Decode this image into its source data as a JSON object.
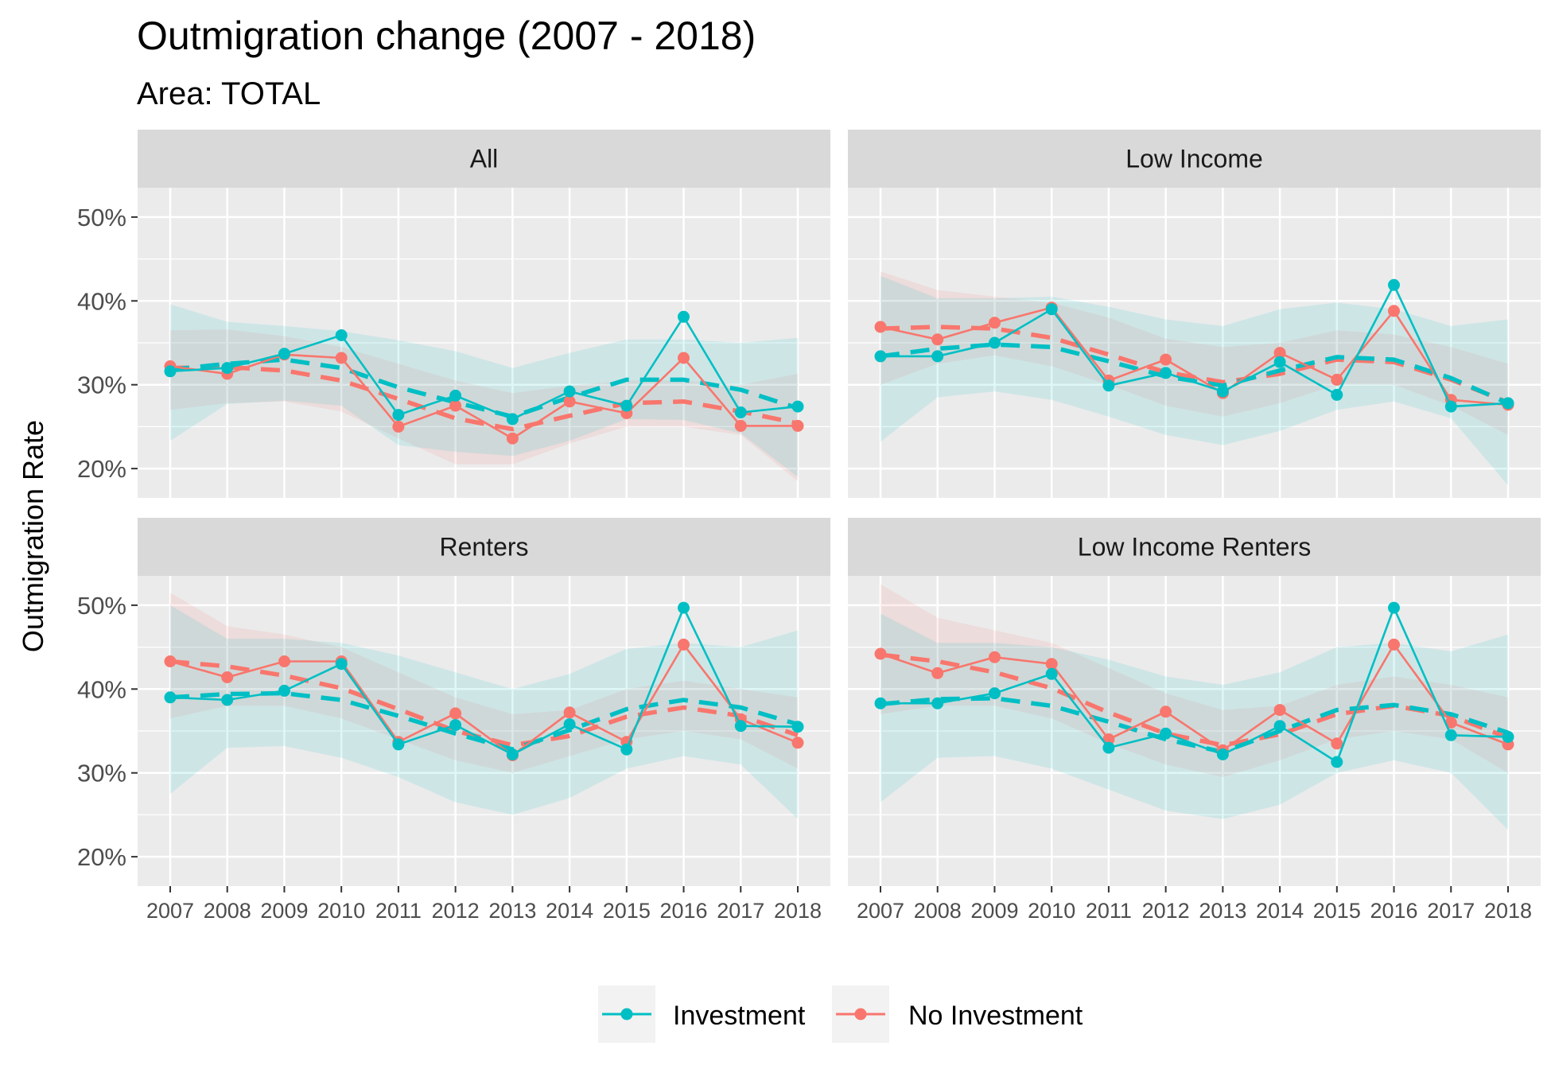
{
  "chart_data": {
    "type": "line",
    "title": "Outmigration change (2007 - 2018)",
    "subtitle": "Area: TOTAL",
    "ylabel": "Outmigration Rate",
    "xlabel": "",
    "x": [
      "2007",
      "2008",
      "2009",
      "2010",
      "2011",
      "2012",
      "2013",
      "2014",
      "2015",
      "2016",
      "2017",
      "2018"
    ],
    "ylim": [
      0.165,
      0.535
    ],
    "yticks": [
      0.2,
      0.3,
      0.4,
      0.5
    ],
    "ytick_labels": [
      "20%",
      "30%",
      "40%",
      "50%"
    ],
    "grid": true,
    "legend_position": "bottom",
    "series_names": [
      "Investment",
      "No Investment"
    ],
    "colors": {
      "Investment": "#00bfc4",
      "No Investment": "#f8766d"
    },
    "facets": [
      {
        "label": "All",
        "series": [
          {
            "name": "Investment",
            "values": [
              0.316,
              0.32,
              0.337,
              0.359,
              0.264,
              0.287,
              0.259,
              0.292,
              0.275,
              0.381,
              0.267,
              0.274
            ],
            "trend": [
              0.318,
              0.325,
              0.33,
              0.32,
              0.297,
              0.279,
              0.262,
              0.285,
              0.306,
              0.306,
              0.294,
              0.272
            ],
            "band_lo": [
              0.233,
              0.277,
              0.281,
              0.275,
              0.228,
              0.22,
              0.215,
              0.233,
              0.259,
              0.258,
              0.242,
              0.19
            ],
            "band_hi": [
              0.396,
              0.375,
              0.37,
              0.364,
              0.353,
              0.34,
              0.32,
              0.338,
              0.354,
              0.354,
              0.35,
              0.356
            ]
          },
          {
            "name": "No Investment",
            "values": [
              0.322,
              0.313,
              0.336,
              0.332,
              0.25,
              0.275,
              0.236,
              0.28,
              0.266,
              0.332,
              0.251,
              0.251
            ],
            "trend": [
              0.32,
              0.321,
              0.317,
              0.305,
              0.283,
              0.26,
              0.247,
              0.263,
              0.278,
              0.28,
              0.268,
              0.254
            ],
            "band_lo": [
              0.27,
              0.278,
              0.28,
              0.268,
              0.236,
              0.205,
              0.205,
              0.23,
              0.25,
              0.25,
              0.24,
              0.185
            ],
            "band_hi": [
              0.365,
              0.366,
              0.358,
              0.345,
              0.325,
              0.305,
              0.29,
              0.299,
              0.305,
              0.305,
              0.3,
              0.313
            ]
          }
        ]
      },
      {
        "label": "Low Income",
        "series": [
          {
            "name": "Investment",
            "values": [
              0.334,
              0.334,
              0.35,
              0.39,
              0.299,
              0.314,
              0.292,
              0.327,
              0.288,
              0.419,
              0.274,
              0.278
            ],
            "trend": [
              0.334,
              0.343,
              0.348,
              0.345,
              0.328,
              0.31,
              0.299,
              0.317,
              0.333,
              0.33,
              0.308,
              0.278
            ],
            "band_lo": [
              0.232,
              0.285,
              0.292,
              0.282,
              0.262,
              0.24,
              0.228,
              0.245,
              0.27,
              0.28,
              0.26,
              0.18
            ],
            "band_hi": [
              0.43,
              0.403,
              0.403,
              0.405,
              0.393,
              0.378,
              0.37,
              0.39,
              0.398,
              0.39,
              0.37,
              0.378
            ]
          },
          {
            "name": "No Investment",
            "values": [
              0.369,
              0.354,
              0.374,
              0.392,
              0.305,
              0.33,
              0.29,
              0.338,
              0.306,
              0.388,
              0.282,
              0.276
            ],
            "trend": [
              0.367,
              0.369,
              0.367,
              0.356,
              0.336,
              0.315,
              0.303,
              0.313,
              0.33,
              0.327,
              0.306,
              0.279
            ],
            "band_lo": [
              0.3,
              0.325,
              0.335,
              0.322,
              0.3,
              0.275,
              0.262,
              0.278,
              0.3,
              0.3,
              0.275,
              0.24
            ],
            "band_hi": [
              0.435,
              0.413,
              0.405,
              0.398,
              0.38,
              0.355,
              0.345,
              0.35,
              0.365,
              0.36,
              0.345,
              0.325
            ]
          }
        ]
      },
      {
        "label": "Renters",
        "series": [
          {
            "name": "Investment",
            "values": [
              0.39,
              0.387,
              0.398,
              0.43,
              0.334,
              0.357,
              0.322,
              0.358,
              0.328,
              0.497,
              0.356,
              0.355
            ],
            "trend": [
              0.39,
              0.394,
              0.395,
              0.387,
              0.368,
              0.347,
              0.328,
              0.351,
              0.376,
              0.387,
              0.378,
              0.358
            ],
            "band_lo": [
              0.275,
              0.33,
              0.332,
              0.318,
              0.295,
              0.265,
              0.25,
              0.27,
              0.305,
              0.32,
              0.31,
              0.245
            ],
            "band_hi": [
              0.5,
              0.46,
              0.46,
              0.455,
              0.44,
              0.42,
              0.4,
              0.418,
              0.448,
              0.455,
              0.45,
              0.47
            ]
          },
          {
            "name": "No Investment",
            "values": [
              0.433,
              0.414,
              0.433,
              0.433,
              0.337,
              0.371,
              0.321,
              0.372,
              0.337,
              0.453,
              0.364,
              0.336
            ],
            "trend": [
              0.433,
              0.427,
              0.416,
              0.401,
              0.376,
              0.35,
              0.333,
              0.344,
              0.367,
              0.378,
              0.368,
              0.345
            ],
            "band_lo": [
              0.365,
              0.38,
              0.38,
              0.365,
              0.34,
              0.315,
              0.3,
              0.32,
              0.34,
              0.35,
              0.34,
              0.305
            ],
            "band_hi": [
              0.515,
              0.475,
              0.465,
              0.45,
              0.42,
              0.39,
              0.37,
              0.375,
              0.4,
              0.41,
              0.4,
              0.39
            ]
          }
        ]
      },
      {
        "label": "Low Income Renters",
        "series": [
          {
            "name": "Investment",
            "values": [
              0.383,
              0.383,
              0.395,
              0.418,
              0.33,
              0.347,
              0.322,
              0.356,
              0.313,
              0.497,
              0.345,
              0.343
            ],
            "trend": [
              0.382,
              0.388,
              0.389,
              0.38,
              0.361,
              0.34,
              0.325,
              0.35,
              0.375,
              0.381,
              0.37,
              0.348
            ],
            "band_lo": [
              0.265,
              0.318,
              0.32,
              0.305,
              0.28,
              0.255,
              0.245,
              0.262,
              0.3,
              0.315,
              0.3,
              0.232
            ],
            "band_hi": [
              0.49,
              0.455,
              0.455,
              0.45,
              0.435,
              0.415,
              0.405,
              0.42,
              0.45,
              0.455,
              0.445,
              0.465
            ]
          },
          {
            "name": "No Investment",
            "values": [
              0.442,
              0.419,
              0.438,
              0.43,
              0.34,
              0.373,
              0.327,
              0.375,
              0.335,
              0.453,
              0.36,
              0.334
            ],
            "trend": [
              0.441,
              0.433,
              0.42,
              0.401,
              0.372,
              0.347,
              0.333,
              0.346,
              0.37,
              0.38,
              0.368,
              0.342
            ],
            "band_lo": [
              0.37,
              0.38,
              0.38,
              0.365,
              0.335,
              0.31,
              0.295,
              0.315,
              0.34,
              0.35,
              0.34,
              0.3
            ],
            "band_hi": [
              0.525,
              0.485,
              0.47,
              0.455,
              0.425,
              0.395,
              0.375,
              0.38,
              0.405,
              0.415,
              0.405,
              0.39
            ]
          }
        ]
      }
    ]
  }
}
